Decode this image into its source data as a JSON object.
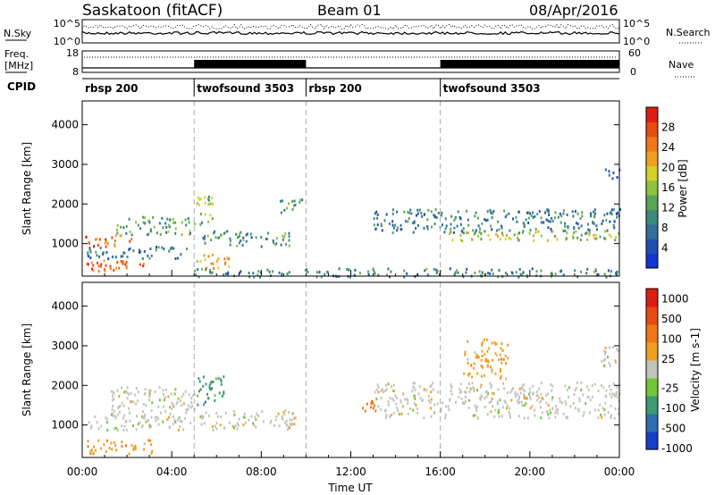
{
  "header": {
    "station": "Saskatoon (fitACF)",
    "beam": "Beam 01",
    "date": "08/Apr/2016"
  },
  "noise_panel": {
    "left_label": "N.Sky",
    "right_label": "N.Search",
    "left_ticks": [
      "10^5",
      "10^0"
    ],
    "right_ticks": [
      "10^5",
      "10^0"
    ]
  },
  "freq_panel": {
    "left_label_1": "Freq.",
    "left_label_2": "[MHz]",
    "right_label": "Nave",
    "left_ticks": [
      "18",
      "8"
    ],
    "right_ticks": [
      "60",
      "0"
    ]
  },
  "cpid": {
    "label": "CPID",
    "segments": [
      {
        "name": "rbsp 200",
        "start_h": 0,
        "end_h": 5
      },
      {
        "name": "twofsound 3503",
        "start_h": 5,
        "end_h": 10
      },
      {
        "name": "rbsp 200",
        "start_h": 10,
        "end_h": 16
      },
      {
        "name": "twofsound 3503",
        "start_h": 16,
        "end_h": 24
      }
    ]
  },
  "chart_data": [
    {
      "type": "heatmap",
      "quantity": "Power",
      "xlabel": "",
      "ylabel": "Slant Range [km]",
      "xlim": [
        0,
        24
      ],
      "ylim": [
        180,
        4600
      ],
      "yticks": [
        1000,
        2000,
        3000,
        4000
      ],
      "colorbar": {
        "label": "Power [dB]",
        "range": [
          0,
          32
        ],
        "ticks": [
          "4",
          "8",
          "12",
          "16",
          "20",
          "24",
          "28"
        ],
        "colors": [
          "#1434d6",
          "#1f4fb0",
          "#2f6f9a",
          "#3d8a7a",
          "#5aa25a",
          "#8fc23e",
          "#d7cf2a",
          "#f0a020",
          "#f07818",
          "#e84a14",
          "#dc1e10"
        ]
      },
      "features": [
        {
          "t0": 0.1,
          "t1": 3.0,
          "r0": 300,
          "r1": 600,
          "level": 0.8
        },
        {
          "t0": 0.1,
          "t1": 2.2,
          "r0": 950,
          "r1": 1250,
          "level": 0.78
        },
        {
          "t0": 1.5,
          "t1": 5.0,
          "r0": 1250,
          "r1": 1700,
          "level": 0.4
        },
        {
          "t0": 0.2,
          "t1": 4.8,
          "r0": 650,
          "r1": 950,
          "level": 0.28
        },
        {
          "t0": 5.1,
          "t1": 5.9,
          "r0": 1500,
          "r1": 2250,
          "level": 0.5
        },
        {
          "t0": 5.1,
          "t1": 6.6,
          "r0": 400,
          "r1": 750,
          "level": 0.65
        },
        {
          "t0": 5.3,
          "t1": 9.3,
          "r0": 950,
          "r1": 1350,
          "level": 0.35
        },
        {
          "t0": 8.8,
          "t1": 9.9,
          "r0": 1800,
          "r1": 2150,
          "level": 0.35
        },
        {
          "t0": 13.0,
          "t1": 24.0,
          "r0": 1300,
          "r1": 1900,
          "level": 0.28
        },
        {
          "t0": 16.2,
          "t1": 24.0,
          "r0": 1100,
          "r1": 1350,
          "level": 0.55
        },
        {
          "t0": 23.3,
          "t1": 24.0,
          "r0": 2600,
          "r1": 2900,
          "level": 0.15
        },
        {
          "t0": 5.0,
          "t1": 24.0,
          "r0": 180,
          "r1": 400,
          "level": 0.3
        }
      ]
    },
    {
      "type": "heatmap",
      "quantity": "Velocity",
      "xlabel": "Time UT",
      "ylabel": "Slant Range [km]",
      "xlim": [
        0,
        24
      ],
      "ylim": [
        180,
        4600
      ],
      "yticks": [
        1000,
        2000,
        3000,
        4000
      ],
      "xticks": [
        "00:00",
        "04:00",
        "08:00",
        "12:00",
        "16:00",
        "20:00",
        "00:00"
      ],
      "colorbar": {
        "label": "Velocity [m s-1]",
        "ticks": [
          "1000",
          "500",
          "100",
          "25",
          "-25",
          "-100",
          "-500",
          "-1000"
        ],
        "colors": [
          "#1a3fc8",
          "#2e6db0",
          "#3d9a72",
          "#72c73a",
          "#c4c4bc",
          "#f0a020",
          "#f07818",
          "#e84a14",
          "#dc1e10"
        ]
      },
      "features": [
        {
          "t0": 0.2,
          "t1": 3.2,
          "r0": 300,
          "r1": 650,
          "color_index": 5
        },
        {
          "t0": 1.2,
          "t1": 5.0,
          "r0": 1200,
          "r1": 2000,
          "color_index": 4
        },
        {
          "t0": 0.2,
          "t1": 4.8,
          "r0": 900,
          "r1": 1250,
          "color_index": 4
        },
        {
          "t0": 5.1,
          "t1": 6.3,
          "r0": 1500,
          "r1": 2300,
          "color_index": 2
        },
        {
          "t0": 5.2,
          "t1": 9.5,
          "r0": 900,
          "r1": 1400,
          "color_index": 4
        },
        {
          "t0": 12.5,
          "t1": 13.3,
          "r0": 1350,
          "r1": 1700,
          "color_index": 6
        },
        {
          "t0": 13.0,
          "t1": 24.0,
          "r0": 1200,
          "r1": 2100,
          "color_index": 4
        },
        {
          "t0": 17.0,
          "t1": 19.0,
          "r0": 2200,
          "r1": 3200,
          "color_index": 5
        },
        {
          "t0": 23.0,
          "t1": 24.0,
          "r0": 2500,
          "r1": 3000,
          "color_index": 4
        }
      ]
    }
  ]
}
